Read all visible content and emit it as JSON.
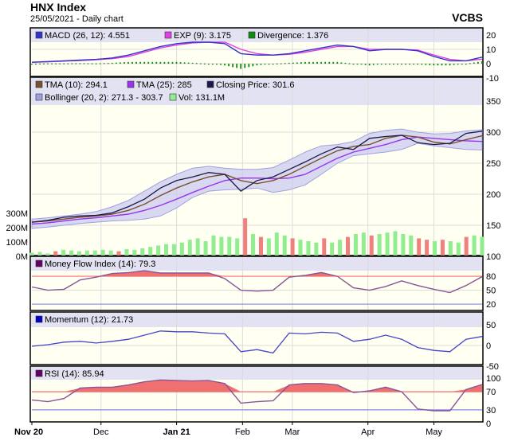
{
  "header": {
    "title": "HNX Index",
    "subtitle": "25/05/2021 - Daily chart",
    "brand": "VCBS"
  },
  "colors": {
    "background": "#fffff2",
    "legend_band": "#e2e2f2",
    "grid": "#dcdcdc",
    "macd": "#3333cc",
    "signal": "#e040e0",
    "divergence": "#138a13",
    "tma10": "#7a5030",
    "tma25": "#9933ee",
    "close": "#1a1a4a",
    "bollinger_fill": "#c8c8f0",
    "bollinger_line": "#a0a0e0",
    "vol_up": "#90ee90",
    "vol_down": "#f08080",
    "osc_line": "#885599",
    "overbought": "#f07070",
    "oversold": "#8888ee",
    "momentum": "#4444cc"
  },
  "chart_data": [
    {
      "type": "line",
      "panel": "macd",
      "legend": [
        "MACD (26, 12): 4.551",
        "EXP (9): 3.175",
        "Divergence: 1.376"
      ],
      "ylim": [
        -10,
        20
      ],
      "yticks": [
        20,
        10,
        0,
        -10
      ],
      "series": [
        {
          "name": "MACD (26, 12)",
          "values": [
            1,
            1.5,
            2,
            2.5,
            3,
            4,
            6,
            9,
            12,
            14,
            15,
            15,
            14,
            7,
            6,
            6,
            7,
            9,
            11,
            13,
            12,
            9,
            10,
            10,
            9,
            5,
            2,
            2,
            4.551
          ]
        },
        {
          "name": "EXP (9)",
          "values": [
            1,
            1.3,
            1.8,
            2.2,
            2.8,
            3.5,
            5,
            8,
            11,
            13,
            14.5,
            15,
            15,
            10,
            7,
            6,
            6.5,
            8,
            10,
            12,
            12,
            10,
            10,
            10,
            9.5,
            6,
            3,
            2,
            3.175
          ]
        }
      ]
    },
    {
      "type": "line",
      "panel": "price",
      "legend": [
        "TMA (10): 294.1",
        "TMA (25): 285",
        "Closing Price: 301.6",
        "Bollinger (20, 2): 271.3 - 303.7",
        "Vol: 131.1M"
      ],
      "ylim": [
        100,
        350
      ],
      "yticks": [
        350,
        300,
        250,
        200,
        150,
        100
      ],
      "vol_ticks": [
        "300M",
        "200M",
        "100M",
        "0M"
      ],
      "vol_tick_values": [
        300,
        200,
        100,
        0
      ],
      "series": [
        {
          "name": "Closing Price",
          "values": [
            155,
            158,
            163,
            165,
            166,
            170,
            180,
            192,
            210,
            222,
            228,
            235,
            232,
            205,
            222,
            228,
            240,
            252,
            265,
            276,
            272,
            290,
            293,
            295,
            283,
            280,
            282,
            298,
            301.6
          ]
        },
        {
          "name": "TMA (10)",
          "values": [
            155,
            157,
            160,
            163,
            165,
            168,
            174,
            184,
            198,
            210,
            220,
            228,
            232,
            222,
            217,
            222,
            232,
            245,
            258,
            270,
            277,
            280,
            290,
            295,
            292,
            284,
            281,
            288,
            294.1
          ]
        },
        {
          "name": "TMA (25)",
          "values": [
            152,
            154,
            157,
            160,
            162,
            165,
            168,
            174,
            182,
            192,
            203,
            213,
            222,
            226,
            226,
            225,
            226,
            232,
            245,
            258,
            268,
            274,
            280,
            288,
            292,
            290,
            288,
            286,
            285
          ]
        }
      ],
      "bollinger_upper": [
        160,
        162,
        165,
        168,
        172,
        180,
        190,
        205,
        220,
        232,
        242,
        245,
        242,
        240,
        240,
        243,
        255,
        268,
        278,
        280,
        285,
        298,
        303,
        305,
        300,
        297,
        298,
        302,
        303.7
      ],
      "bollinger_lower": [
        145,
        147,
        150,
        153,
        155,
        157,
        158,
        160,
        165,
        178,
        195,
        205,
        207,
        208,
        210,
        203,
        207,
        215,
        232,
        250,
        262,
        265,
        268,
        272,
        282,
        278,
        275,
        272,
        271.3
      ],
      "volume_m": [
        20,
        25,
        15,
        30,
        40,
        35,
        30,
        35,
        35,
        40,
        35,
        30,
        45,
        40,
        50,
        60,
        70,
        80,
        80,
        90,
        110,
        120,
        100,
        140,
        130,
        130,
        120,
        260,
        150,
        130,
        120,
        160,
        140,
        120,
        110,
        100,
        90,
        120,
        90,
        110,
        130,
        150,
        160,
        140,
        150,
        160,
        170,
        150,
        140,
        120,
        110,
        100,
        110,
        100,
        90,
        130,
        140,
        131.1
      ],
      "volume_down_bars": [
        3,
        11,
        27,
        29,
        33,
        37,
        40,
        43,
        49,
        50,
        52,
        55
      ]
    },
    {
      "type": "line",
      "panel": "mfi",
      "legend": [
        "Money Flow Index (14): 79.3"
      ],
      "ylim": [
        0,
        100
      ],
      "yticks": [
        80,
        50,
        20
      ],
      "levels": [
        80,
        20
      ],
      "series": [
        {
          "name": "Money Flow Index (14)",
          "values": [
            57,
            50,
            52,
            72,
            78,
            86,
            88,
            92,
            87,
            87,
            87,
            87,
            75,
            50,
            48,
            50,
            78,
            82,
            88,
            80,
            55,
            50,
            58,
            70,
            60,
            52,
            45,
            60,
            79.3
          ]
        }
      ]
    },
    {
      "type": "line",
      "panel": "momentum",
      "legend": [
        "Momentum (12): 21.73"
      ],
      "ylim": [
        -50,
        50
      ],
      "yticks": [
        50,
        0,
        -50
      ],
      "series": [
        {
          "name": "Momentum (12)",
          "values": [
            -2,
            2,
            8,
            10,
            6,
            10,
            15,
            25,
            35,
            33,
            33,
            30,
            28,
            -15,
            -10,
            -18,
            30,
            28,
            32,
            30,
            10,
            15,
            25,
            15,
            -5,
            -12,
            -15,
            15,
            21.73
          ]
        }
      ]
    },
    {
      "type": "line",
      "panel": "rsi",
      "legend": [
        "RSI (14): 85.94"
      ],
      "ylim": [
        0,
        100
      ],
      "yticks": [
        100,
        70,
        30,
        0
      ],
      "levels": [
        70,
        30
      ],
      "series": [
        {
          "name": "RSI (14)",
          "values": [
            52,
            48,
            55,
            78,
            80,
            80,
            85,
            92,
            96,
            95,
            94,
            95,
            88,
            45,
            48,
            50,
            85,
            88,
            88,
            85,
            68,
            72,
            80,
            70,
            32,
            28,
            28,
            75,
            85.94
          ]
        }
      ]
    }
  ],
  "x_axis": {
    "labels": [
      "Nov 20",
      "Dec",
      "Jan 21",
      "Feb",
      "Mar",
      "Apr",
      "May"
    ],
    "bold": [
      true,
      false,
      true,
      false,
      false,
      false,
      false
    ],
    "positions": [
      0,
      4.3,
      9.0,
      13.1,
      16.2,
      20.9,
      25.0
    ],
    "count": 29
  }
}
